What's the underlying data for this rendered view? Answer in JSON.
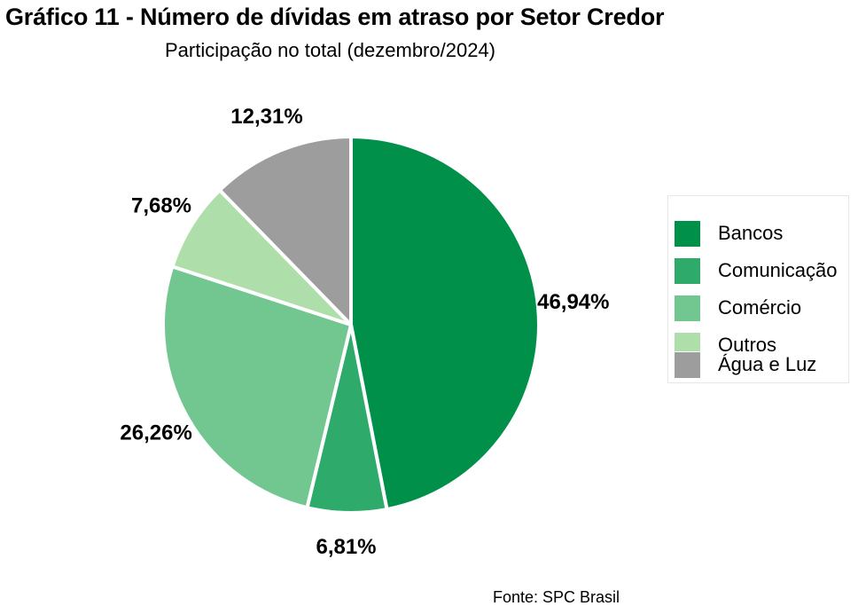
{
  "title": "Gráfico 11 - Número de dívidas em atraso por Setor Credor",
  "subtitle": "Participação no total (dezembro/2024)",
  "source": "Fonte: SPC Brasil",
  "chart_data": {
    "type": "pie",
    "categories": [
      "Bancos",
      "Comunicação",
      "Comércio",
      "Outros",
      "Água e Luz"
    ],
    "values": [
      46.94,
      6.81,
      26.26,
      7.68,
      12.31
    ],
    "value_labels": [
      "46,94%",
      "6,81%",
      "26,26%",
      "7,68%",
      "12,31%"
    ],
    "colors": [
      "#00904a",
      "#2eaa6b",
      "#72c68f",
      "#aedeaa",
      "#9d9d9d"
    ],
    "start": "12 o'clock, clockwise",
    "legend_position": "right"
  }
}
